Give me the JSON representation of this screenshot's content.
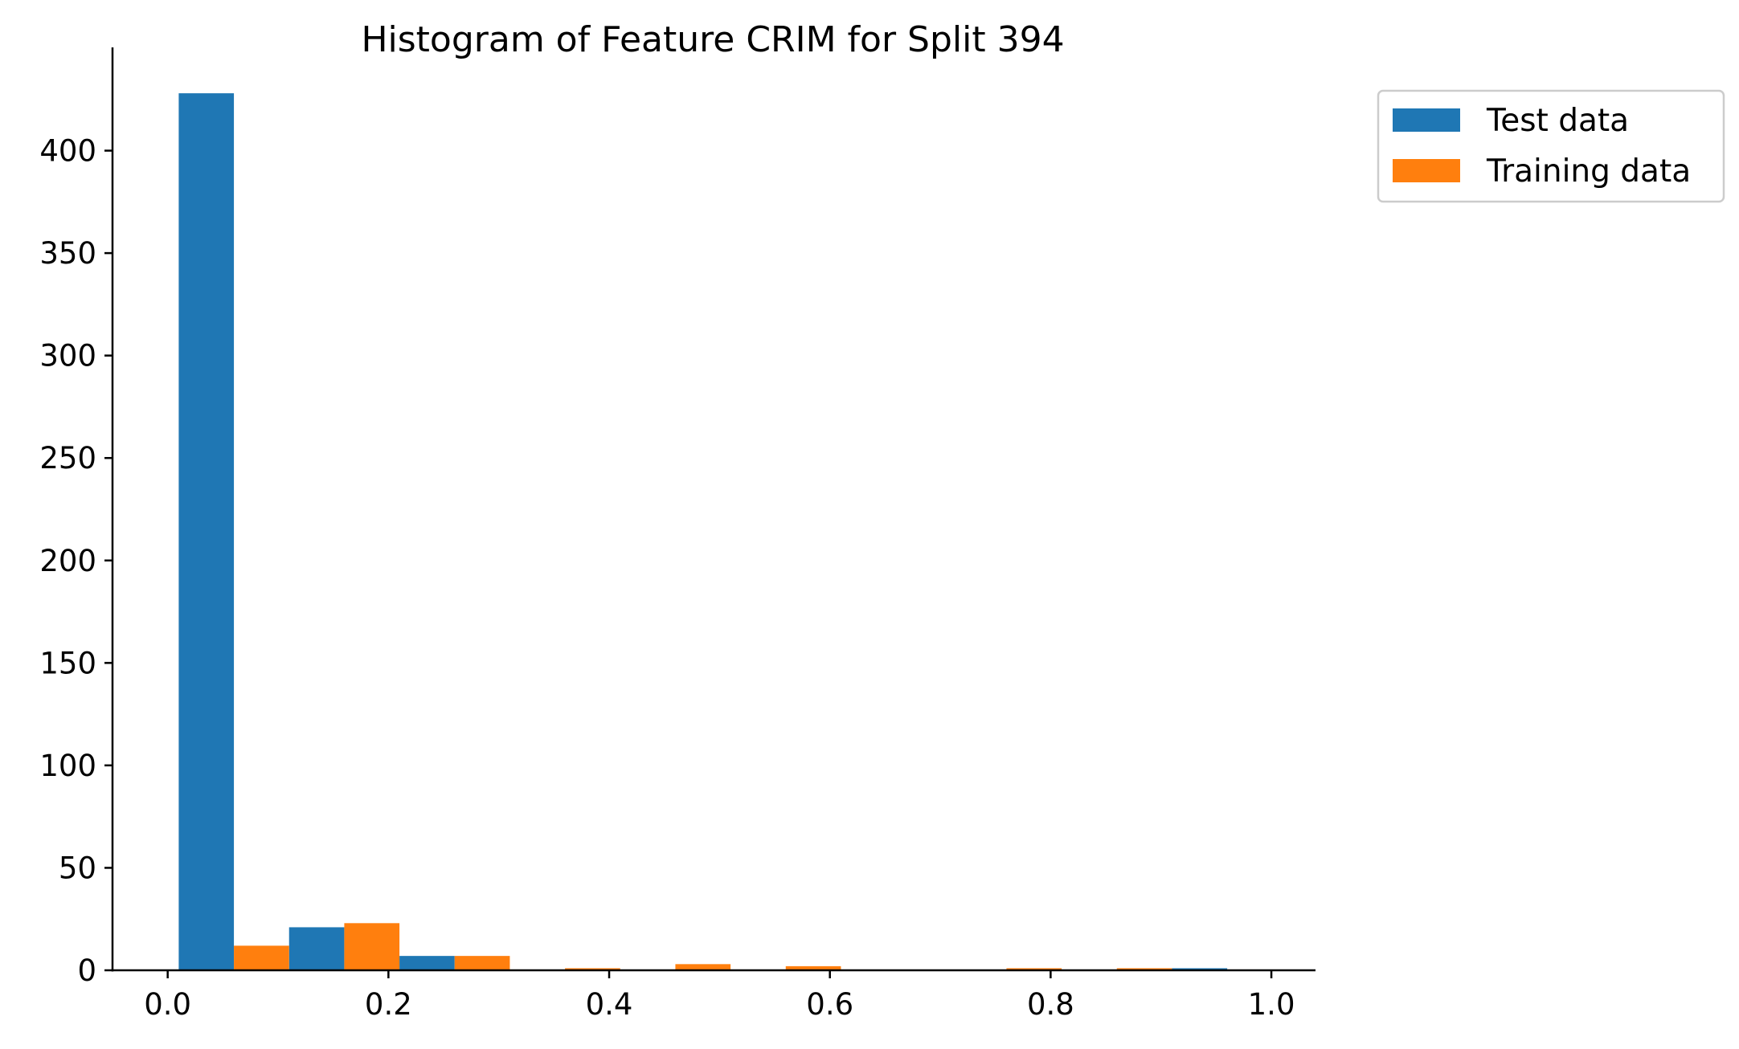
{
  "chart_data": {
    "type": "bar",
    "title": "Histogram of Feature CRIM for Split 394",
    "xlabel": "",
    "ylabel": "",
    "xlim": [
      -0.05,
      1.04
    ],
    "ylim": [
      0,
      450
    ],
    "x_ticks": [
      0.0,
      0.2,
      0.4,
      0.6,
      0.8,
      1.0
    ],
    "x_tick_labels": [
      "0.0",
      "0.2",
      "0.4",
      "0.6",
      "0.8",
      "1.0"
    ],
    "y_ticks": [
      0,
      50,
      100,
      150,
      200,
      250,
      300,
      350,
      400
    ],
    "y_tick_labels": [
      "0",
      "50",
      "100",
      "150",
      "200",
      "250",
      "300",
      "350",
      "400"
    ],
    "bin_edges": [
      0.01,
      0.11,
      0.21,
      0.31,
      0.41,
      0.51,
      0.61,
      0.71,
      0.81,
      0.91,
      1.01
    ],
    "legend_position": "outside-top-right",
    "grid": false,
    "series": [
      {
        "name": "Test data",
        "color": "#1f77b4",
        "values": [
          428,
          21,
          7,
          0,
          0,
          0,
          0,
          0,
          0,
          1
        ]
      },
      {
        "name": "Training data",
        "color": "#ff7f0e",
        "values": [
          12,
          23,
          7,
          1,
          3,
          2,
          0,
          1,
          1,
          0
        ]
      }
    ]
  }
}
